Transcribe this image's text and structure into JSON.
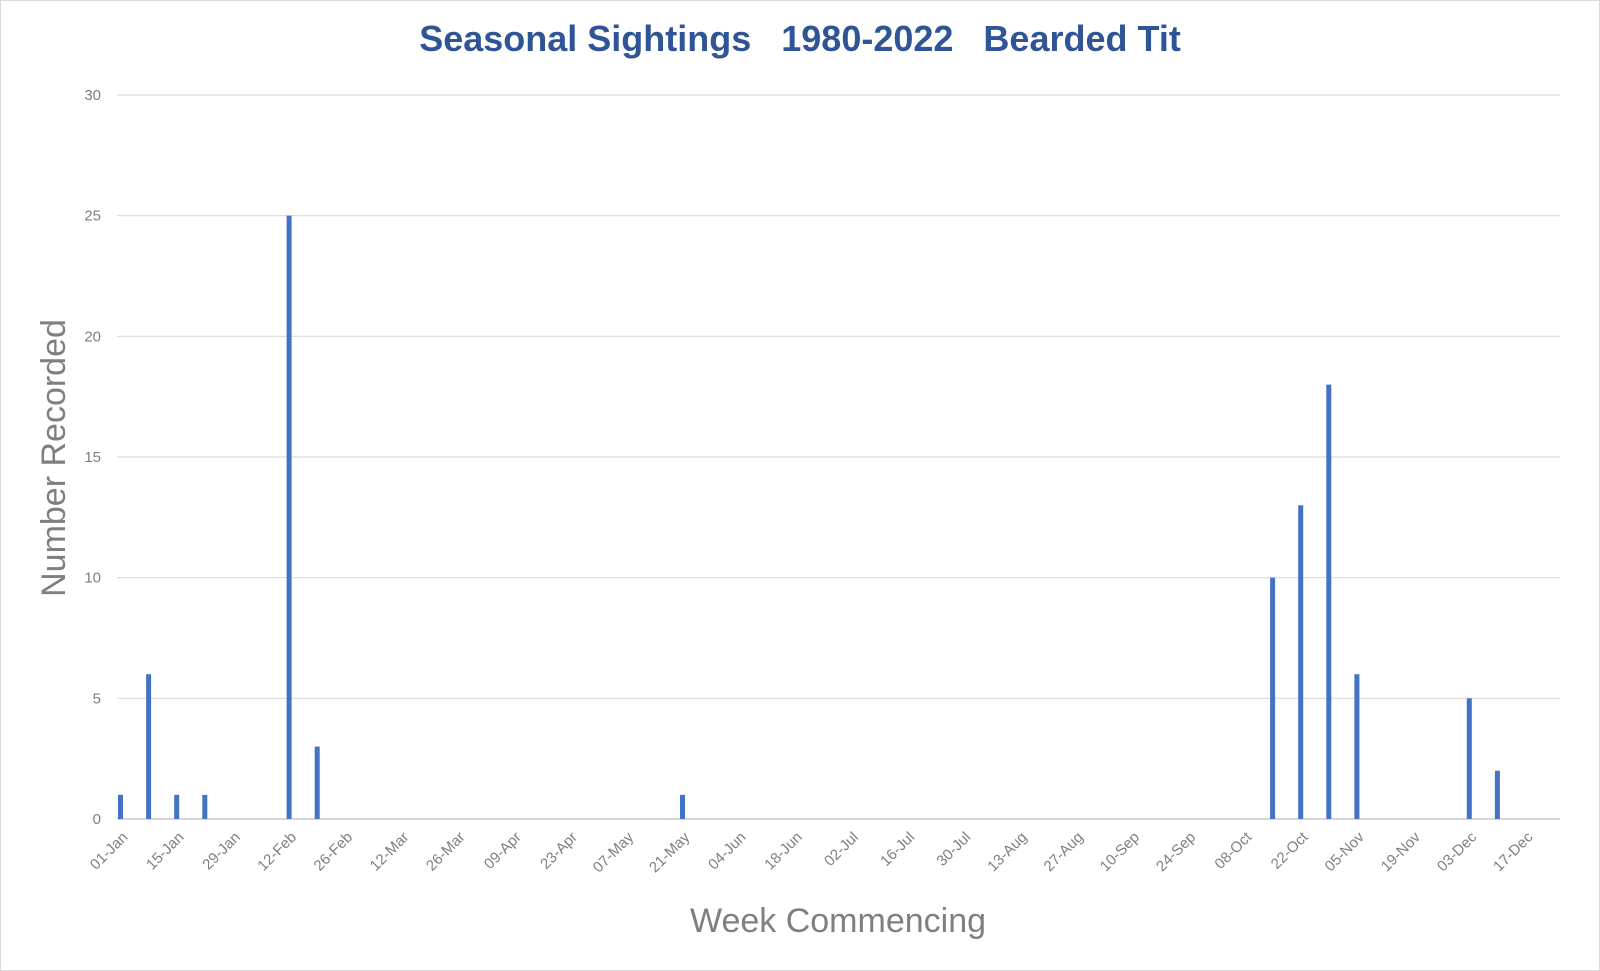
{
  "chart_data": {
    "type": "bar",
    "title": "Seasonal Sightings   1980-2022   Bearded Tit",
    "xlabel": "Week Commencing",
    "ylabel": "Number Recorded",
    "ylim": [
      0,
      30
    ],
    "yticks": [
      0,
      5,
      10,
      15,
      20,
      25,
      30
    ],
    "grid": true,
    "legend": "none",
    "bar_color": "#4472c4",
    "x_tick_labels": [
      "01-Jan",
      "15-Jan",
      "29-Jan",
      "12-Feb",
      "26-Feb",
      "12-Mar",
      "26-Mar",
      "09-Apr",
      "23-Apr",
      "07-May",
      "21-May",
      "04-Jun",
      "18-Jun",
      "02-Jul",
      "16-Jul",
      "30-Jul",
      "13-Aug",
      "27-Aug",
      "10-Sep",
      "24-Sep",
      "08-Oct",
      "22-Oct",
      "05-Nov",
      "19-Nov",
      "03-Dec",
      "17-Dec"
    ],
    "categories": [
      "01-Jan",
      "08-Jan",
      "15-Jan",
      "22-Jan",
      "29-Jan",
      "05-Feb",
      "12-Feb",
      "19-Feb",
      "26-Feb",
      "05-Mar",
      "12-Mar",
      "19-Mar",
      "26-Mar",
      "02-Apr",
      "09-Apr",
      "16-Apr",
      "23-Apr",
      "30-Apr",
      "07-May",
      "14-May",
      "21-May",
      "28-May",
      "04-Jun",
      "11-Jun",
      "18-Jun",
      "25-Jun",
      "02-Jul",
      "09-Jul",
      "16-Jul",
      "23-Jul",
      "30-Jul",
      "06-Aug",
      "13-Aug",
      "20-Aug",
      "27-Aug",
      "03-Sep",
      "10-Sep",
      "17-Sep",
      "24-Sep",
      "01-Oct",
      "08-Oct",
      "15-Oct",
      "22-Oct",
      "29-Oct",
      "05-Nov",
      "12-Nov",
      "19-Nov",
      "26-Nov",
      "03-Dec",
      "10-Dec",
      "17-Dec",
      "24-Dec"
    ],
    "values": [
      1,
      6,
      1,
      1,
      0,
      0,
      25,
      3,
      0,
      0,
      0,
      0,
      0,
      0,
      0,
      0,
      0,
      0,
      0,
      0,
      1,
      0,
      0,
      0,
      0,
      0,
      0,
      0,
      0,
      0,
      0,
      0,
      0,
      0,
      0,
      0,
      0,
      0,
      0,
      0,
      0,
      10,
      13,
      18,
      6,
      0,
      0,
      0,
      5,
      2,
      0,
      0
    ]
  }
}
